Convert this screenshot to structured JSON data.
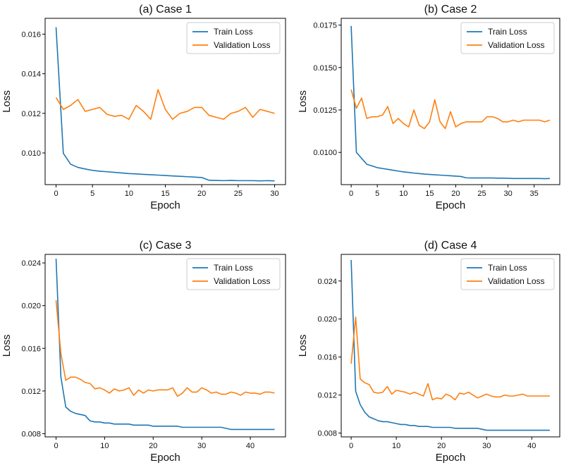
{
  "colors": {
    "train": "#1f77b4",
    "validation": "#ff7f0e",
    "axis": "#000000"
  },
  "chart_data": [
    {
      "type": "line",
      "title": "(a) Case 1",
      "xlabel": "Epoch",
      "ylabel": "Loss",
      "xlim": [
        -1.5,
        31.5
      ],
      "ylim": [
        0.0084,
        0.0168
      ],
      "xticks": [
        0,
        5,
        10,
        15,
        20,
        25,
        30
      ],
      "yticks": [
        0.01,
        0.012,
        0.014,
        0.016
      ],
      "ytick_labels": [
        "0.010",
        "0.012",
        "0.014",
        "0.016"
      ],
      "legend": [
        "Train Loss",
        "Validation Loss"
      ],
      "legend_position": "top-right",
      "series": [
        {
          "name": "Train Loss",
          "x": [
            0,
            1,
            2,
            3,
            4,
            5,
            6,
            7,
            8,
            9,
            10,
            11,
            12,
            13,
            14,
            15,
            16,
            17,
            18,
            19,
            20,
            21,
            22,
            23,
            24,
            25,
            26,
            27,
            28,
            29,
            30
          ],
          "values": [
            0.01635,
            0.00998,
            0.00943,
            0.00927,
            0.00919,
            0.00912,
            0.00908,
            0.00905,
            0.00902,
            0.00899,
            0.00896,
            0.00894,
            0.00892,
            0.0089,
            0.00888,
            0.00886,
            0.00884,
            0.00882,
            0.0088,
            0.00878,
            0.00876,
            0.00862,
            0.00861,
            0.0086,
            0.00861,
            0.0086,
            0.0086,
            0.0086,
            0.00859,
            0.0086,
            0.00859
          ]
        },
        {
          "name": "Validation Loss",
          "x": [
            0,
            1,
            2,
            3,
            4,
            5,
            6,
            7,
            8,
            9,
            10,
            11,
            12,
            13,
            14,
            15,
            16,
            17,
            18,
            19,
            20,
            21,
            22,
            23,
            24,
            25,
            26,
            27,
            28,
            29,
            30
          ],
          "values": [
            0.0128,
            0.0122,
            0.0124,
            0.0127,
            0.0121,
            0.0122,
            0.0123,
            0.01195,
            0.01185,
            0.0119,
            0.0117,
            0.0124,
            0.0121,
            0.0117,
            0.0132,
            0.0122,
            0.0117,
            0.012,
            0.0121,
            0.0123,
            0.0123,
            0.0119,
            0.0118,
            0.0117,
            0.012,
            0.0121,
            0.0123,
            0.0118,
            0.0122,
            0.0121,
            0.012
          ]
        }
      ]
    },
    {
      "type": "line",
      "title": "(b) Case 2",
      "xlabel": "Epoch",
      "ylabel": "Loss",
      "xlim": [
        -1.9,
        39.9
      ],
      "ylim": [
        0.0081,
        0.0179
      ],
      "xticks": [
        0,
        5,
        10,
        15,
        20,
        25,
        30,
        35
      ],
      "yticks": [
        0.01,
        0.0125,
        0.015,
        0.0175
      ],
      "ytick_labels": [
        "0.0100",
        "0.0125",
        "0.0150",
        "0.0175"
      ],
      "legend": [
        "Train Loss",
        "Validation Loss"
      ],
      "legend_position": "top-right",
      "series": [
        {
          "name": "Train Loss",
          "x": [
            0,
            1,
            2,
            3,
            4,
            5,
            6,
            7,
            8,
            9,
            10,
            11,
            12,
            13,
            14,
            15,
            16,
            17,
            18,
            19,
            20,
            21,
            22,
            23,
            24,
            25,
            26,
            27,
            28,
            29,
            30,
            31,
            32,
            33,
            34,
            35,
            36,
            37,
            38
          ],
          "values": [
            0.01745,
            0.01,
            0.00965,
            0.0093,
            0.0092,
            0.0091,
            0.00905,
            0.009,
            0.00895,
            0.0089,
            0.00885,
            0.00882,
            0.00878,
            0.00875,
            0.00872,
            0.0087,
            0.00868,
            0.00866,
            0.00864,
            0.00862,
            0.0086,
            0.00858,
            0.0085,
            0.00849,
            0.00849,
            0.00849,
            0.00849,
            0.00849,
            0.00848,
            0.00848,
            0.00847,
            0.00846,
            0.00846,
            0.00846,
            0.00846,
            0.00846,
            0.00846,
            0.00845,
            0.00846
          ]
        },
        {
          "name": "Validation Loss",
          "x": [
            0,
            1,
            2,
            3,
            4,
            5,
            6,
            7,
            8,
            9,
            10,
            11,
            12,
            13,
            14,
            15,
            16,
            17,
            18,
            19,
            20,
            21,
            22,
            23,
            24,
            25,
            26,
            27,
            28,
            29,
            30,
            31,
            32,
            33,
            34,
            35,
            36,
            37,
            38
          ],
          "values": [
            0.0137,
            0.0126,
            0.0132,
            0.012,
            0.0121,
            0.0121,
            0.0122,
            0.0127,
            0.0117,
            0.012,
            0.0117,
            0.0115,
            0.0125,
            0.0116,
            0.0114,
            0.0118,
            0.0131,
            0.0118,
            0.0114,
            0.0124,
            0.0115,
            0.0117,
            0.0118,
            0.0118,
            0.0118,
            0.0118,
            0.0121,
            0.0121,
            0.012,
            0.0118,
            0.0118,
            0.0119,
            0.0118,
            0.0119,
            0.0119,
            0.0119,
            0.0119,
            0.0118,
            0.0119
          ]
        }
      ]
    },
    {
      "type": "line",
      "title": "(c) Case 3",
      "xlabel": "Epoch",
      "ylabel": "Loss",
      "xlim": [
        -2.25,
        47.25
      ],
      "ylim": [
        0.0077,
        0.0248
      ],
      "xticks": [
        0,
        10,
        20,
        30,
        40
      ],
      "yticks": [
        0.008,
        0.012,
        0.016,
        0.02,
        0.024
      ],
      "ytick_labels": [
        "0.008",
        "0.012",
        "0.016",
        "0.020",
        "0.024"
      ],
      "legend": [
        "Train Loss",
        "Validation Loss"
      ],
      "legend_position": "top-right",
      "series": [
        {
          "name": "Train Loss",
          "x": [
            0,
            1,
            2,
            3,
            4,
            5,
            6,
            7,
            8,
            9,
            10,
            11,
            12,
            13,
            14,
            15,
            16,
            17,
            18,
            19,
            20,
            21,
            22,
            23,
            24,
            25,
            26,
            27,
            28,
            29,
            30,
            31,
            32,
            33,
            34,
            35,
            36,
            37,
            38,
            39,
            40,
            41,
            42,
            43,
            44,
            45
          ],
          "values": [
            0.0244,
            0.0133,
            0.0105,
            0.0101,
            0.0099,
            0.0098,
            0.0097,
            0.0092,
            0.0091,
            0.0091,
            0.009,
            0.009,
            0.0089,
            0.0089,
            0.0089,
            0.0089,
            0.0088,
            0.0088,
            0.0088,
            0.0088,
            0.0087,
            0.0087,
            0.0087,
            0.0087,
            0.0087,
            0.0087,
            0.0086,
            0.0086,
            0.0086,
            0.0086,
            0.0086,
            0.0086,
            0.0086,
            0.0086,
            0.0086,
            0.0085,
            0.0084,
            0.0084,
            0.0084,
            0.0084,
            0.0084,
            0.0084,
            0.0084,
            0.0084,
            0.0084,
            0.0084
          ]
        },
        {
          "name": "Validation Loss",
          "x": [
            0,
            1,
            2,
            3,
            4,
            5,
            6,
            7,
            8,
            9,
            10,
            11,
            12,
            13,
            14,
            15,
            16,
            17,
            18,
            19,
            20,
            21,
            22,
            23,
            24,
            25,
            26,
            27,
            28,
            29,
            30,
            31,
            32,
            33,
            34,
            35,
            36,
            37,
            38,
            39,
            40,
            41,
            42,
            43,
            44,
            45
          ],
          "values": [
            0.0205,
            0.0155,
            0.013,
            0.0133,
            0.0133,
            0.0131,
            0.0128,
            0.0127,
            0.0122,
            0.0123,
            0.0121,
            0.0118,
            0.0122,
            0.012,
            0.0121,
            0.0123,
            0.0116,
            0.0121,
            0.0118,
            0.0121,
            0.012,
            0.0121,
            0.0121,
            0.0121,
            0.0123,
            0.0115,
            0.0118,
            0.0123,
            0.0119,
            0.0119,
            0.0123,
            0.0121,
            0.0118,
            0.0119,
            0.0117,
            0.0117,
            0.0119,
            0.0118,
            0.0116,
            0.0119,
            0.0118,
            0.0118,
            0.0117,
            0.0119,
            0.0119,
            0.0118
          ]
        }
      ]
    },
    {
      "type": "line",
      "title": "(d) Case 4",
      "xlabel": "Epoch",
      "ylabel": "Loss",
      "xlim": [
        -2.2,
        46.2
      ],
      "ylim": [
        0.0076,
        0.0268
      ],
      "xticks": [
        0,
        10,
        20,
        30,
        40
      ],
      "yticks": [
        0.008,
        0.012,
        0.016,
        0.02,
        0.024
      ],
      "ytick_labels": [
        "0.008",
        "0.012",
        "0.016",
        "0.020",
        "0.024"
      ],
      "legend": [
        "Train Loss",
        "Validation Loss"
      ],
      "legend_position": "top-right",
      "series": [
        {
          "name": "Train Loss",
          "x": [
            0,
            1,
            2,
            3,
            4,
            5,
            6,
            7,
            8,
            9,
            10,
            11,
            12,
            13,
            14,
            15,
            16,
            17,
            18,
            19,
            20,
            21,
            22,
            23,
            24,
            25,
            26,
            27,
            28,
            29,
            30,
            31,
            32,
            33,
            34,
            35,
            36,
            37,
            38,
            39,
            40,
            41,
            42,
            43,
            44
          ],
          "values": [
            0.0262,
            0.0124,
            0.011,
            0.0102,
            0.0097,
            0.0095,
            0.0093,
            0.0092,
            0.0092,
            0.0091,
            0.009,
            0.0089,
            0.0089,
            0.0088,
            0.0088,
            0.0087,
            0.0087,
            0.0087,
            0.0086,
            0.0086,
            0.0086,
            0.0086,
            0.0086,
            0.0085,
            0.0085,
            0.0085,
            0.0085,
            0.0085,
            0.0085,
            0.0084,
            0.0083,
            0.0083,
            0.0083,
            0.0083,
            0.0083,
            0.0083,
            0.0083,
            0.0083,
            0.0083,
            0.0083,
            0.0083,
            0.0083,
            0.0083,
            0.0083,
            0.0083
          ]
        },
        {
          "name": "Validation Loss",
          "x": [
            0,
            1,
            2,
            3,
            4,
            5,
            6,
            7,
            8,
            9,
            10,
            11,
            12,
            13,
            14,
            15,
            16,
            17,
            18,
            19,
            20,
            21,
            22,
            23,
            24,
            25,
            26,
            27,
            28,
            29,
            30,
            31,
            32,
            33,
            34,
            35,
            36,
            37,
            38,
            39,
            40,
            41,
            42,
            43,
            44
          ],
          "values": [
            0.0153,
            0.0202,
            0.0137,
            0.0133,
            0.0131,
            0.0123,
            0.0122,
            0.0123,
            0.0129,
            0.0121,
            0.0125,
            0.0124,
            0.0123,
            0.0121,
            0.0123,
            0.0121,
            0.0119,
            0.0132,
            0.0115,
            0.0117,
            0.0116,
            0.0121,
            0.0119,
            0.0115,
            0.0122,
            0.0121,
            0.0123,
            0.012,
            0.0117,
            0.0119,
            0.0121,
            0.0119,
            0.0118,
            0.0118,
            0.012,
            0.0119,
            0.0119,
            0.012,
            0.0121,
            0.0119,
            0.0119,
            0.0119,
            0.0119,
            0.0119,
            0.0119
          ]
        }
      ]
    }
  ]
}
